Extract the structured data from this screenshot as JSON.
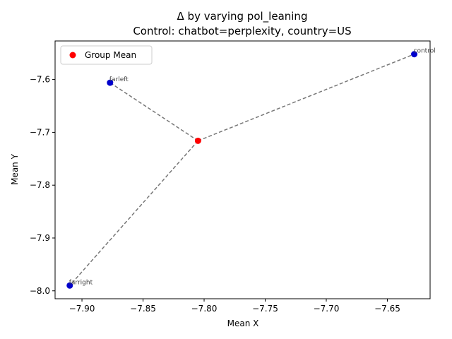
{
  "chart_data": {
    "type": "scatter",
    "title_line1": "Δ by varying pol_leaning",
    "title_line2": "Control: chatbot=perplexity, country=US",
    "xlabel": "Mean X",
    "ylabel": "Mean Y",
    "xlim": [
      -7.922,
      -7.615
    ],
    "ylim": [
      -8.015,
      -7.527
    ],
    "xticks": [
      -7.9,
      -7.85,
      -7.8,
      -7.75,
      -7.7,
      -7.65
    ],
    "xtick_labels": [
      "−7.90",
      "−7.85",
      "−7.80",
      "−7.75",
      "−7.70",
      "−7.65"
    ],
    "yticks": [
      -8.0,
      -7.9,
      -7.8,
      -7.7,
      -7.6
    ],
    "ytick_labels": [
      "−8.0",
      "−7.9",
      "−7.8",
      "−7.7",
      "−7.6"
    ],
    "group_mean": {
      "x": -7.805,
      "y": -7.716,
      "color": "#ff0000"
    },
    "points": [
      {
        "label": "control",
        "x": -7.628,
        "y": -7.552,
        "color": "#0000cc"
      },
      {
        "label": "farleft",
        "x": -7.877,
        "y": -7.606,
        "color": "#0000cc"
      },
      {
        "label": "farright",
        "x": -7.91,
        "y": -7.99,
        "color": "#0000cc"
      }
    ],
    "connector_style": "dashed",
    "connector_color": "#777777",
    "legend": {
      "label": "Group Mean",
      "placement": "upper-left"
    },
    "grid": false
  }
}
